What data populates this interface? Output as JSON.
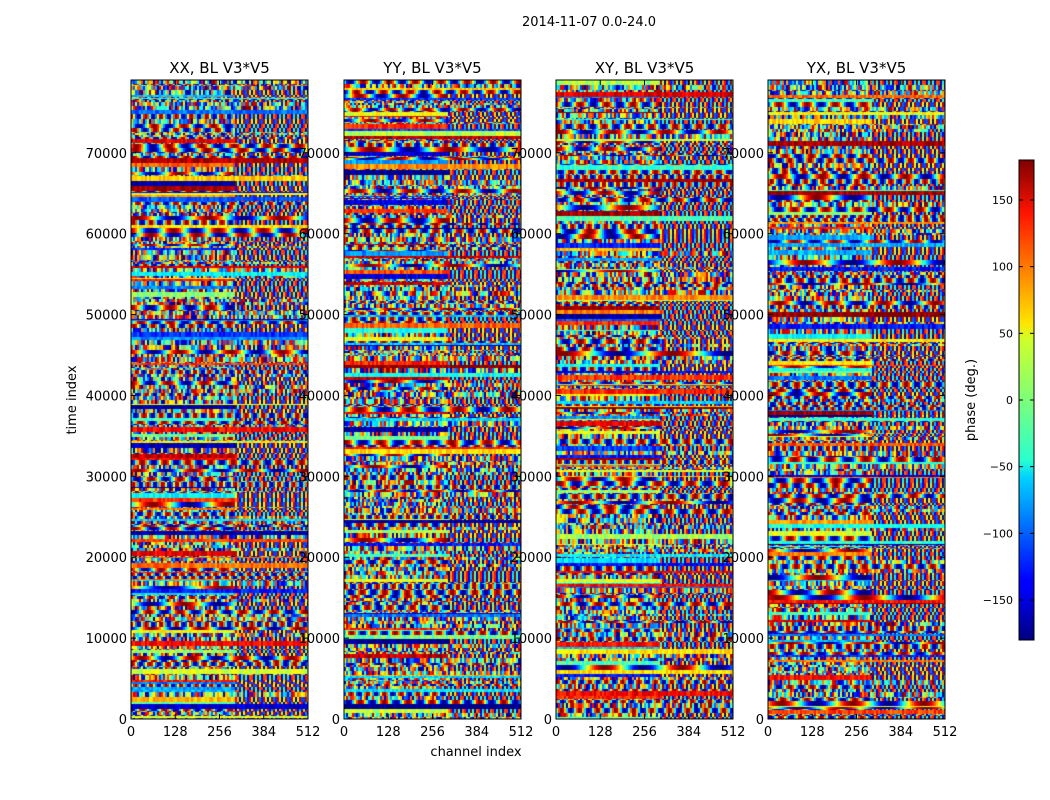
{
  "suptitle": "2014-11-07 0.0-24.0",
  "chart_data": {
    "type": "heatmap",
    "shared_xlabel": "channel index",
    "shared_ylabel": "time index",
    "xlim": [
      0,
      512
    ],
    "ylim": [
      0,
      79000
    ],
    "xticks": [
      0,
      128,
      256,
      384,
      512
    ],
    "xtick_labels": [
      "0",
      "128",
      "256",
      "384",
      "512"
    ],
    "yticks": [
      0,
      10000,
      20000,
      30000,
      40000,
      50000,
      60000,
      70000
    ],
    "ytick_labels": [
      "0",
      "10000",
      "20000",
      "30000",
      "40000",
      "50000",
      "60000",
      "70000"
    ],
    "panels": [
      {
        "title": "XX, BL V3*V5",
        "polarization": "XX"
      },
      {
        "title": "YY, BL V3*V5",
        "polarization": "YY"
      },
      {
        "title": "XY, BL V3*V5",
        "polarization": "XY"
      },
      {
        "title": "YX, BL V3*V5",
        "polarization": "YX"
      }
    ],
    "colorbar": {
      "label": "phase (deg.)",
      "range": [
        -180,
        180
      ],
      "ticks": [
        150,
        100,
        50,
        0,
        -50,
        -100,
        -150
      ],
      "tick_labels": [
        "150",
        "100",
        "50",
        "0",
        "−50",
        "−100",
        "−150"
      ],
      "colormap": "jet"
    }
  }
}
